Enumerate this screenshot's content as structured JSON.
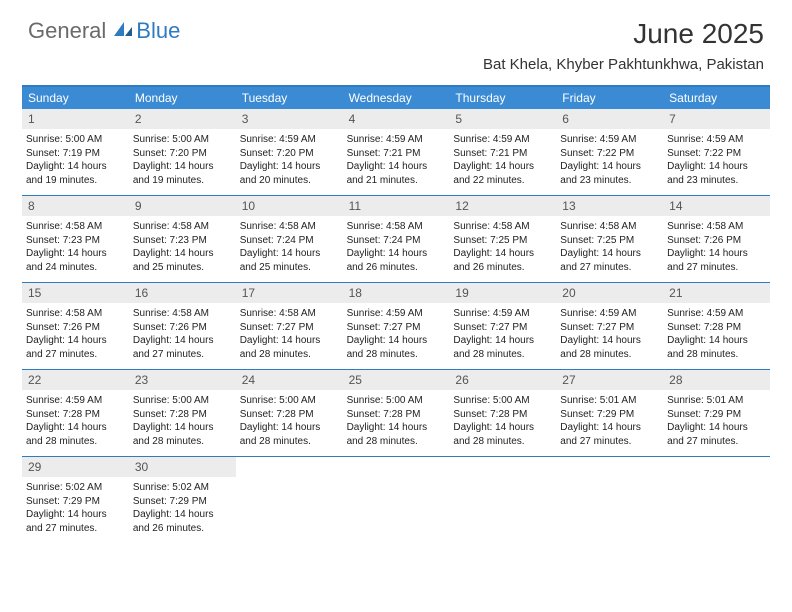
{
  "logo": {
    "part1": "General",
    "part2": "Blue"
  },
  "title": "June 2025",
  "subtitle": "Bat Khela, Khyber Pakhtunkhwa, Pakistan",
  "colors": {
    "header_bg": "#3b8bd4",
    "accent_border": "#2f7bbf",
    "daynum_bg": "#ececec",
    "logo_gray": "#6a6a6a",
    "logo_blue": "#2f7bbf",
    "text": "#222222"
  },
  "fontsize": {
    "title": 28,
    "subtitle": 15,
    "dayheader": 12,
    "daynum": 12,
    "body": 10
  },
  "day_names": [
    "Sunday",
    "Monday",
    "Tuesday",
    "Wednesday",
    "Thursday",
    "Friday",
    "Saturday"
  ],
  "days": [
    {
      "n": 1,
      "sr": "5:00 AM",
      "ss": "7:19 PM",
      "dl": "14 hours and 19 minutes."
    },
    {
      "n": 2,
      "sr": "5:00 AM",
      "ss": "7:20 PM",
      "dl": "14 hours and 19 minutes."
    },
    {
      "n": 3,
      "sr": "4:59 AM",
      "ss": "7:20 PM",
      "dl": "14 hours and 20 minutes."
    },
    {
      "n": 4,
      "sr": "4:59 AM",
      "ss": "7:21 PM",
      "dl": "14 hours and 21 minutes."
    },
    {
      "n": 5,
      "sr": "4:59 AM",
      "ss": "7:21 PM",
      "dl": "14 hours and 22 minutes."
    },
    {
      "n": 6,
      "sr": "4:59 AM",
      "ss": "7:22 PM",
      "dl": "14 hours and 23 minutes."
    },
    {
      "n": 7,
      "sr": "4:59 AM",
      "ss": "7:22 PM",
      "dl": "14 hours and 23 minutes."
    },
    {
      "n": 8,
      "sr": "4:58 AM",
      "ss": "7:23 PM",
      "dl": "14 hours and 24 minutes."
    },
    {
      "n": 9,
      "sr": "4:58 AM",
      "ss": "7:23 PM",
      "dl": "14 hours and 25 minutes."
    },
    {
      "n": 10,
      "sr": "4:58 AM",
      "ss": "7:24 PM",
      "dl": "14 hours and 25 minutes."
    },
    {
      "n": 11,
      "sr": "4:58 AM",
      "ss": "7:24 PM",
      "dl": "14 hours and 26 minutes."
    },
    {
      "n": 12,
      "sr": "4:58 AM",
      "ss": "7:25 PM",
      "dl": "14 hours and 26 minutes."
    },
    {
      "n": 13,
      "sr": "4:58 AM",
      "ss": "7:25 PM",
      "dl": "14 hours and 27 minutes."
    },
    {
      "n": 14,
      "sr": "4:58 AM",
      "ss": "7:26 PM",
      "dl": "14 hours and 27 minutes."
    },
    {
      "n": 15,
      "sr": "4:58 AM",
      "ss": "7:26 PM",
      "dl": "14 hours and 27 minutes."
    },
    {
      "n": 16,
      "sr": "4:58 AM",
      "ss": "7:26 PM",
      "dl": "14 hours and 27 minutes."
    },
    {
      "n": 17,
      "sr": "4:58 AM",
      "ss": "7:27 PM",
      "dl": "14 hours and 28 minutes."
    },
    {
      "n": 18,
      "sr": "4:59 AM",
      "ss": "7:27 PM",
      "dl": "14 hours and 28 minutes."
    },
    {
      "n": 19,
      "sr": "4:59 AM",
      "ss": "7:27 PM",
      "dl": "14 hours and 28 minutes."
    },
    {
      "n": 20,
      "sr": "4:59 AM",
      "ss": "7:27 PM",
      "dl": "14 hours and 28 minutes."
    },
    {
      "n": 21,
      "sr": "4:59 AM",
      "ss": "7:28 PM",
      "dl": "14 hours and 28 minutes."
    },
    {
      "n": 22,
      "sr": "4:59 AM",
      "ss": "7:28 PM",
      "dl": "14 hours and 28 minutes."
    },
    {
      "n": 23,
      "sr": "5:00 AM",
      "ss": "7:28 PM",
      "dl": "14 hours and 28 minutes."
    },
    {
      "n": 24,
      "sr": "5:00 AM",
      "ss": "7:28 PM",
      "dl": "14 hours and 28 minutes."
    },
    {
      "n": 25,
      "sr": "5:00 AM",
      "ss": "7:28 PM",
      "dl": "14 hours and 28 minutes."
    },
    {
      "n": 26,
      "sr": "5:00 AM",
      "ss": "7:28 PM",
      "dl": "14 hours and 28 minutes."
    },
    {
      "n": 27,
      "sr": "5:01 AM",
      "ss": "7:29 PM",
      "dl": "14 hours and 27 minutes."
    },
    {
      "n": 28,
      "sr": "5:01 AM",
      "ss": "7:29 PM",
      "dl": "14 hours and 27 minutes."
    },
    {
      "n": 29,
      "sr": "5:02 AM",
      "ss": "7:29 PM",
      "dl": "14 hours and 27 minutes."
    },
    {
      "n": 30,
      "sr": "5:02 AM",
      "ss": "7:29 PM",
      "dl": "14 hours and 26 minutes."
    }
  ],
  "labels": {
    "sunrise": "Sunrise:",
    "sunset": "Sunset:",
    "daylight": "Daylight:"
  },
  "layout": {
    "first_day_offset": 0,
    "weeks": 5,
    "cols": 7
  }
}
